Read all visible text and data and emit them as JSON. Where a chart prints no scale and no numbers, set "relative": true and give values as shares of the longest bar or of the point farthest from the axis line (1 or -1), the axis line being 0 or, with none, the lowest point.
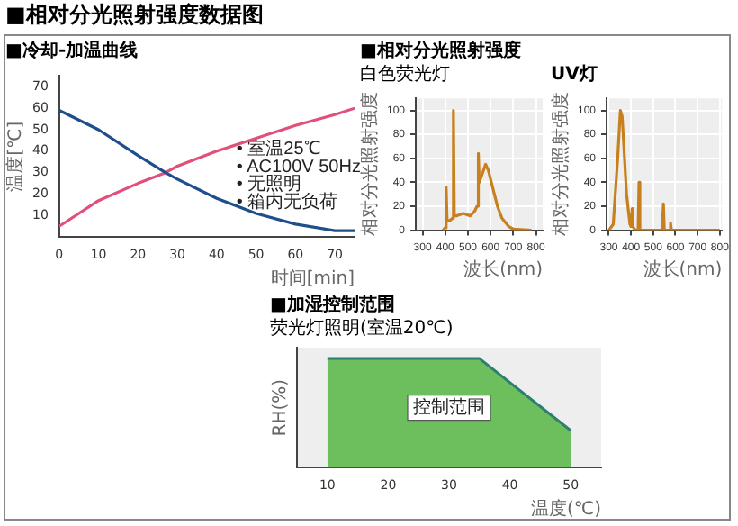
{
  "chart_data": [
    {
      "type": "line",
      "title": "■相对分光照射强度数据图",
      "subtitle": "■冷却-加温曲线",
      "xlabel": "时间[min]",
      "ylabel": "温度[℃]",
      "xlim": [
        0,
        75
      ],
      "xticks": [
        0,
        10,
        20,
        30,
        40,
        50,
        60,
        70
      ],
      "ylim": [
        0,
        75
      ],
      "yticks": [
        10,
        20,
        30,
        40,
        50,
        60,
        70
      ],
      "grid": false,
      "legend": false,
      "marker": "none",
      "line_style": "solid",
      "annotations": [
        "• 室温25℃",
        "• AC100V 50Hz",
        "• 无照明",
        "• 箱内无负荷"
      ],
      "series": [
        {
          "color": "#1f4e8c",
          "x": [
            0,
            10,
            20,
            27,
            30,
            40,
            50,
            60,
            70,
            75
          ],
          "values": [
            59,
            50,
            38,
            30,
            27,
            18,
            11,
            6,
            3,
            3
          ]
        },
        {
          "color": "#e0507a",
          "x": [
            0,
            10,
            20,
            27,
            30,
            40,
            50,
            60,
            70,
            75
          ],
          "values": [
            5,
            17,
            25,
            30,
            33,
            40,
            46,
            52,
            57,
            60
          ]
        }
      ]
    },
    {
      "type": "line",
      "title": "■相对分光照射强度",
      "subtitle": "白色荧光灯",
      "xlabel": "波长(nm)",
      "ylabel": "相对分光照射强度",
      "xlim": [
        270,
        830
      ],
      "xticks": [
        300,
        400,
        500,
        600,
        700,
        800
      ],
      "ylim": [
        0,
        110
      ],
      "yticks": [
        0,
        20,
        40,
        60,
        80,
        100
      ],
      "grid": true,
      "legend": false,
      "marker": "none",
      "line_style": "solid",
      "series": [
        {
          "color": "#c8801e",
          "x": [
            390,
            400,
            404,
            408,
            420,
            432,
            436,
            440,
            450,
            480,
            510,
            530,
            540,
            546,
            550,
            565,
            578,
            590,
            610,
            630,
            650,
            680,
            700,
            780
          ],
          "values": [
            0,
            2,
            36,
            8,
            8,
            10,
            100,
            12,
            12,
            14,
            12,
            16,
            20,
            64,
            40,
            48,
            55,
            50,
            35,
            20,
            10,
            3,
            1,
            0
          ]
        }
      ]
    },
    {
      "type": "line",
      "title": "UV灯",
      "xlabel": "波长(nm)",
      "ylabel": "相对分光照射强度",
      "xlim": [
        290,
        810
      ],
      "xticks": [
        300,
        400,
        500,
        600,
        700,
        800
      ],
      "ylim": [
        0,
        110
      ],
      "yticks": [
        0,
        20,
        40,
        60,
        80,
        100
      ],
      "grid": true,
      "legend": false,
      "marker": "none",
      "line_style": "solid",
      "series": [
        {
          "color": "#c8801e",
          "x": [
            300,
            320,
            340,
            352,
            360,
            380,
            395,
            400,
            405,
            408,
            420,
            432,
            436,
            440,
            540,
            546,
            550,
            575,
            578,
            582,
            800
          ],
          "values": [
            0,
            5,
            60,
            100,
            95,
            30,
            5,
            3,
            18,
            3,
            0,
            0,
            40,
            0,
            0,
            22,
            0,
            0,
            6,
            0,
            0
          ]
        }
      ]
    },
    {
      "type": "area",
      "title": "■加湿控制范围",
      "subtitle": "荧光灯照明(室温20℃)",
      "xlabel": "温度(℃)",
      "ylabel": "RH(%)",
      "relative": true,
      "xlim": [
        5,
        55
      ],
      "xticks": [
        10,
        20,
        30,
        40,
        50
      ],
      "grid": false,
      "legend": false,
      "marker": "none",
      "annotations": [
        "控制范围"
      ],
      "series": [
        {
          "color": "#6cbf5c",
          "x": [
            10,
            35,
            50
          ],
          "values": [
            1,
            1,
            0.34
          ]
        }
      ]
    }
  ]
}
